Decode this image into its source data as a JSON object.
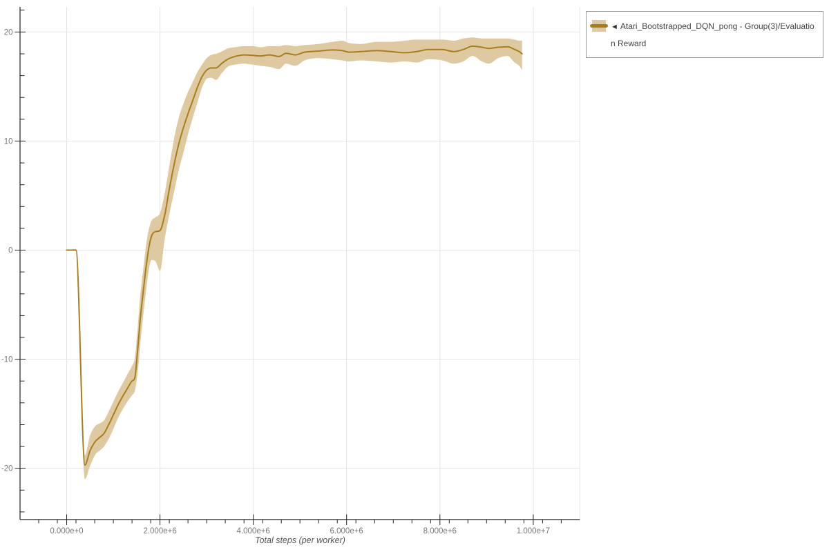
{
  "chart_data": {
    "type": "line",
    "xlabel": "Total steps (per worker)",
    "ylabel": "",
    "grid": true,
    "legend_position": "outside-top-right",
    "x_range": [
      -1000000,
      11000000
    ],
    "y_range": [
      -24.7,
      22.3
    ],
    "x_ticks": [
      {
        "value": 0,
        "label": "0.000e+0"
      },
      {
        "value": 2000000,
        "label": "2.000e+6"
      },
      {
        "value": 4000000,
        "label": "4.000e+6"
      },
      {
        "value": 6000000,
        "label": "6.000e+6"
      },
      {
        "value": 8000000,
        "label": "8.000e+6"
      },
      {
        "value": 10000000,
        "label": "1.000e+7"
      }
    ],
    "x_gridline_values": [
      0,
      2000000,
      4000000,
      6000000,
      8000000,
      10000000,
      11000000
    ],
    "x_minor_tick_step": 400000,
    "y_ticks": [
      {
        "value": 20,
        "label": "20"
      },
      {
        "value": 10,
        "label": "10"
      },
      {
        "value": 0,
        "label": "0"
      },
      {
        "value": -10,
        "label": "-10"
      },
      {
        "value": -20,
        "label": "-20"
      }
    ],
    "y_minor_tick_step": 2,
    "series": [
      {
        "name": "Atari_Bootstrapped_DQN_pong - Group(3)/Evaluation Reward",
        "line_color": "#a87e1c",
        "band_color": "#dec9a0",
        "x_steps": [
          0,
          200000,
          390000,
          500000,
          620000,
          700000,
          800000,
          900000,
          1000000,
          1100000,
          1200000,
          1300000,
          1400000,
          1460000,
          1520000,
          1580000,
          1640000,
          1700000,
          1760000,
          1820000,
          1900000,
          2000000,
          2100000,
          2200000,
          2300000,
          2400000,
          2500000,
          2600000,
          2700000,
          2800000,
          2900000,
          3000000,
          3100000,
          3200000,
          3320000,
          3450000,
          3600000,
          3800000,
          4000000,
          4150000,
          4350000,
          4550000,
          4700000,
          4900000,
          5100000,
          5400000,
          5700000,
          5900000,
          6050000,
          6300000,
          6650000,
          6950000,
          7250000,
          7500000,
          7750000,
          8050000,
          8300000,
          8500000,
          8700000,
          8900000,
          9050000,
          9250000,
          9450000,
          9600000,
          9700000,
          9760000
        ],
        "mean": [
          0,
          0,
          -19.7,
          -18.4,
          -17.5,
          -17.2,
          -16.8,
          -16.0,
          -15.1,
          -14.2,
          -13.4,
          -12.7,
          -12.0,
          -11.7,
          -9.2,
          -6.2,
          -3.8,
          -1.6,
          0.2,
          1.3,
          1.7,
          1.8,
          3.2,
          5.6,
          7.8,
          9.7,
          11.2,
          12.5,
          13.7,
          14.9,
          15.9,
          16.5,
          16.7,
          16.7,
          17.1,
          17.5,
          17.75,
          17.9,
          17.85,
          17.8,
          17.9,
          17.75,
          18.05,
          17.9,
          18.15,
          18.25,
          18.35,
          18.3,
          18.15,
          18.2,
          18.3,
          18.2,
          18.1,
          18.2,
          18.4,
          18.4,
          18.2,
          18.4,
          18.7,
          18.6,
          18.5,
          18.6,
          18.65,
          18.4,
          18.2,
          18.0
        ],
        "band_low": [
          0,
          -0.1,
          -21.0,
          -19.8,
          -18.7,
          -18.4,
          -18.0,
          -17.3,
          -16.4,
          -15.4,
          -14.6,
          -13.9,
          -13.3,
          -12.9,
          -11.3,
          -8.5,
          -6.0,
          -3.8,
          -1.8,
          -0.9,
          -1.0,
          -1.9,
          1.0,
          3.3,
          5.3,
          7.3,
          8.9,
          10.6,
          12.1,
          13.5,
          14.9,
          15.7,
          15.8,
          15.6,
          16.2,
          16.8,
          17.0,
          17.1,
          17.0,
          16.9,
          16.8,
          16.6,
          17.1,
          16.9,
          17.4,
          17.6,
          17.5,
          17.4,
          17.3,
          17.4,
          17.3,
          17.2,
          17.3,
          17.2,
          17.5,
          17.4,
          17.1,
          17.3,
          17.8,
          17.3,
          17.1,
          17.6,
          17.8,
          17.2,
          16.9,
          16.5
        ],
        "band_high": [
          0,
          0.1,
          -18.8,
          -17.0,
          -16.1,
          -15.9,
          -15.6,
          -14.8,
          -13.9,
          -13.0,
          -12.2,
          -11.4,
          -10.6,
          -9.9,
          -7.2,
          -4.0,
          -1.8,
          0.4,
          1.9,
          2.7,
          3.0,
          3.4,
          5.2,
          7.7,
          10.2,
          12.1,
          13.4,
          14.5,
          15.4,
          16.3,
          17.0,
          17.6,
          17.9,
          18.0,
          18.2,
          18.5,
          18.6,
          18.7,
          18.7,
          18.6,
          18.7,
          18.7,
          18.8,
          18.7,
          18.8,
          18.9,
          19.1,
          19.2,
          19.0,
          18.9,
          19.1,
          19.1,
          19.2,
          19.3,
          19.3,
          19.3,
          19.2,
          19.4,
          19.5,
          19.4,
          19.4,
          19.4,
          19.4,
          19.3,
          19.2,
          19.2
        ]
      }
    ]
  },
  "legend_box": {
    "collapse_marker": "◄",
    "label_full": "Atari_Bootstrapped_DQN_pong - Group(3)/Evaluation Reward",
    "label_line1": "Atari_Bootstrapped_DQN_pong - Group(3)/Evaluatio",
    "label_line2": "n Reward"
  },
  "colors": {
    "line": "#a87e1c",
    "band": "#dec9a0",
    "grid": "#e4e4e4",
    "axis": "#222222",
    "tick_label": "#777777",
    "axis_title": "#555555",
    "legend_border": "#999999",
    "legend_text": "#444444",
    "background": "#ffffff"
  }
}
